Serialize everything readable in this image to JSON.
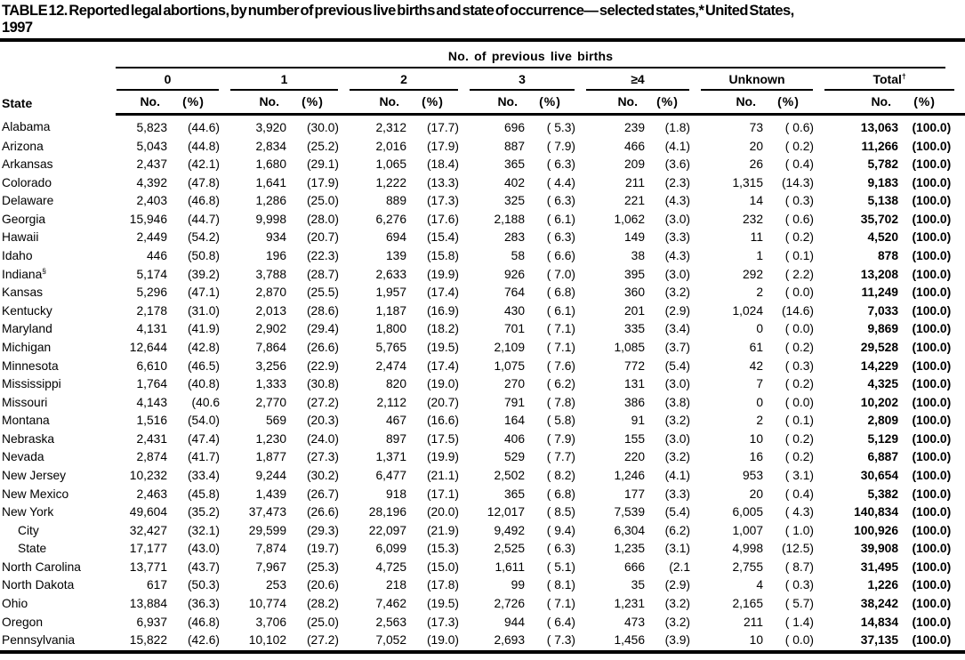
{
  "title": {
    "line1": "TABLE 12. Reported legal abortions, by number of previous live births and state of occurrence— selected states,* United States,",
    "line2": "1997"
  },
  "header": {
    "state_label": "State",
    "spanner": "No. of previous live births",
    "groups": [
      {
        "label": "0",
        "sup": ""
      },
      {
        "label": "1",
        "sup": ""
      },
      {
        "label": "2",
        "sup": ""
      },
      {
        "label": "3",
        "sup": ""
      },
      {
        "label": "≥4",
        "sup": ""
      },
      {
        "label": "Unknown",
        "sup": ""
      },
      {
        "label": "Total",
        "sup": "†"
      }
    ],
    "no_label": "No.",
    "pct_label": "(%)"
  },
  "rows": [
    {
      "state": "Alabama",
      "sup": "",
      "indent": false,
      "cells": [
        [
          "5,823",
          "(44.6)"
        ],
        [
          "3,920",
          "(30.0)"
        ],
        [
          "2,312",
          "(17.7)"
        ],
        [
          "696",
          "( 5.3)"
        ],
        [
          "239",
          "(1.8)"
        ],
        [
          "73",
          "( 0.6)"
        ],
        [
          "13,063",
          "(100.0)"
        ]
      ]
    },
    {
      "state": "Arizona",
      "sup": "",
      "indent": false,
      "cells": [
        [
          "5,043",
          "(44.8)"
        ],
        [
          "2,834",
          "(25.2)"
        ],
        [
          "2,016",
          "(17.9)"
        ],
        [
          "887",
          "( 7.9)"
        ],
        [
          "466",
          "(4.1)"
        ],
        [
          "20",
          "( 0.2)"
        ],
        [
          "11,266",
          "(100.0)"
        ]
      ]
    },
    {
      "state": "Arkansas",
      "sup": "",
      "indent": false,
      "cells": [
        [
          "2,437",
          "(42.1)"
        ],
        [
          "1,680",
          "(29.1)"
        ],
        [
          "1,065",
          "(18.4)"
        ],
        [
          "365",
          "( 6.3)"
        ],
        [
          "209",
          "(3.6)"
        ],
        [
          "26",
          "( 0.4)"
        ],
        [
          "5,782",
          "(100.0)"
        ]
      ]
    },
    {
      "state": "Colorado",
      "sup": "",
      "indent": false,
      "cells": [
        [
          "4,392",
          "(47.8)"
        ],
        [
          "1,641",
          "(17.9)"
        ],
        [
          "1,222",
          "(13.3)"
        ],
        [
          "402",
          "( 4.4)"
        ],
        [
          "211",
          "(2.3)"
        ],
        [
          "1,315",
          "(14.3)"
        ],
        [
          "9,183",
          "(100.0)"
        ]
      ]
    },
    {
      "state": "Delaware",
      "sup": "",
      "indent": false,
      "cells": [
        [
          "2,403",
          "(46.8)"
        ],
        [
          "1,286",
          "(25.0)"
        ],
        [
          "889",
          "(17.3)"
        ],
        [
          "325",
          "( 6.3)"
        ],
        [
          "221",
          "(4.3)"
        ],
        [
          "14",
          "( 0.3)"
        ],
        [
          "5,138",
          "(100.0)"
        ]
      ]
    },
    {
      "state": "Georgia",
      "sup": "",
      "indent": false,
      "cells": [
        [
          "15,946",
          "(44.7)"
        ],
        [
          "9,998",
          "(28.0)"
        ],
        [
          "6,276",
          "(17.6)"
        ],
        [
          "2,188",
          "( 6.1)"
        ],
        [
          "1,062",
          "(3.0)"
        ],
        [
          "232",
          "( 0.6)"
        ],
        [
          "35,702",
          "(100.0)"
        ]
      ]
    },
    {
      "state": "Hawaii",
      "sup": "",
      "indent": false,
      "cells": [
        [
          "2,449",
          "(54.2)"
        ],
        [
          "934",
          "(20.7)"
        ],
        [
          "694",
          "(15.4)"
        ],
        [
          "283",
          "( 6.3)"
        ],
        [
          "149",
          "(3.3)"
        ],
        [
          "11",
          "( 0.2)"
        ],
        [
          "4,520",
          "(100.0)"
        ]
      ]
    },
    {
      "state": "Idaho",
      "sup": "",
      "indent": false,
      "cells": [
        [
          "446",
          "(50.8)"
        ],
        [
          "196",
          "(22.3)"
        ],
        [
          "139",
          "(15.8)"
        ],
        [
          "58",
          "( 6.6)"
        ],
        [
          "38",
          "(4.3)"
        ],
        [
          "1",
          "( 0.1)"
        ],
        [
          "878",
          "(100.0)"
        ]
      ]
    },
    {
      "state": "Indiana",
      "sup": "§",
      "indent": false,
      "cells": [
        [
          "5,174",
          "(39.2)"
        ],
        [
          "3,788",
          "(28.7)"
        ],
        [
          "2,633",
          "(19.9)"
        ],
        [
          "926",
          "( 7.0)"
        ],
        [
          "395",
          "(3.0)"
        ],
        [
          "292",
          "( 2.2)"
        ],
        [
          "13,208",
          "(100.0)"
        ]
      ]
    },
    {
      "state": "Kansas",
      "sup": "",
      "indent": false,
      "cells": [
        [
          "5,296",
          "(47.1)"
        ],
        [
          "2,870",
          "(25.5)"
        ],
        [
          "1,957",
          "(17.4)"
        ],
        [
          "764",
          "( 6.8)"
        ],
        [
          "360",
          "(3.2)"
        ],
        [
          "2",
          "( 0.0)"
        ],
        [
          "11,249",
          "(100.0)"
        ]
      ]
    },
    {
      "state": "Kentucky",
      "sup": "",
      "indent": false,
      "cells": [
        [
          "2,178",
          "(31.0)"
        ],
        [
          "2,013",
          "(28.6)"
        ],
        [
          "1,187",
          "(16.9)"
        ],
        [
          "430",
          "( 6.1)"
        ],
        [
          "201",
          "(2.9)"
        ],
        [
          "1,024",
          "(14.6)"
        ],
        [
          "7,033",
          "(100.0)"
        ]
      ]
    },
    {
      "state": "Maryland",
      "sup": "",
      "indent": false,
      "cells": [
        [
          "4,131",
          "(41.9)"
        ],
        [
          "2,902",
          "(29.4)"
        ],
        [
          "1,800",
          "(18.2)"
        ],
        [
          "701",
          "( 7.1)"
        ],
        [
          "335",
          "(3.4)"
        ],
        [
          "0",
          "( 0.0)"
        ],
        [
          "9,869",
          "(100.0)"
        ]
      ]
    },
    {
      "state": "Michigan",
      "sup": "",
      "indent": false,
      "cells": [
        [
          "12,644",
          "(42.8)"
        ],
        [
          "7,864",
          "(26.6)"
        ],
        [
          "5,765",
          "(19.5)"
        ],
        [
          "2,109",
          "( 7.1)"
        ],
        [
          "1,085",
          "(3.7)"
        ],
        [
          "61",
          "( 0.2)"
        ],
        [
          "29,528",
          "(100.0)"
        ]
      ]
    },
    {
      "state": "Minnesota",
      "sup": "",
      "indent": false,
      "cells": [
        [
          "6,610",
          "(46.5)"
        ],
        [
          "3,256",
          "(22.9)"
        ],
        [
          "2,474",
          "(17.4)"
        ],
        [
          "1,075",
          "( 7.6)"
        ],
        [
          "772",
          "(5.4)"
        ],
        [
          "42",
          "( 0.3)"
        ],
        [
          "14,229",
          "(100.0)"
        ]
      ]
    },
    {
      "state": "Mississippi",
      "sup": "",
      "indent": false,
      "cells": [
        [
          "1,764",
          "(40.8)"
        ],
        [
          "1,333",
          "(30.8)"
        ],
        [
          "820",
          "(19.0)"
        ],
        [
          "270",
          "( 6.2)"
        ],
        [
          "131",
          "(3.0)"
        ],
        [
          "7",
          "( 0.2)"
        ],
        [
          "4,325",
          "(100.0)"
        ]
      ]
    },
    {
      "state": "Missouri",
      "sup": "",
      "indent": false,
      "cells": [
        [
          "4,143",
          "(40.6"
        ],
        [
          "2,770",
          "(27.2)"
        ],
        [
          "2,112",
          "(20.7)"
        ],
        [
          "791",
          "( 7.8)"
        ],
        [
          "386",
          "(3.8)"
        ],
        [
          "0",
          "( 0.0)"
        ],
        [
          "10,202",
          "(100.0)"
        ]
      ]
    },
    {
      "state": "Montana",
      "sup": "",
      "indent": false,
      "cells": [
        [
          "1,516",
          "(54.0)"
        ],
        [
          "569",
          "(20.3)"
        ],
        [
          "467",
          "(16.6)"
        ],
        [
          "164",
          "( 5.8)"
        ],
        [
          "91",
          "(3.2)"
        ],
        [
          "2",
          "( 0.1)"
        ],
        [
          "2,809",
          "(100.0)"
        ]
      ]
    },
    {
      "state": "Nebraska",
      "sup": "",
      "indent": false,
      "cells": [
        [
          "2,431",
          "(47.4)"
        ],
        [
          "1,230",
          "(24.0)"
        ],
        [
          "897",
          "(17.5)"
        ],
        [
          "406",
          "( 7.9)"
        ],
        [
          "155",
          "(3.0)"
        ],
        [
          "10",
          "( 0.2)"
        ],
        [
          "5,129",
          "(100.0)"
        ]
      ]
    },
    {
      "state": "Nevada",
      "sup": "",
      "indent": false,
      "cells": [
        [
          "2,874",
          "(41.7)"
        ],
        [
          "1,877",
          "(27.3)"
        ],
        [
          "1,371",
          "(19.9)"
        ],
        [
          "529",
          "( 7.7)"
        ],
        [
          "220",
          "(3.2)"
        ],
        [
          "16",
          "( 0.2)"
        ],
        [
          "6,887",
          "(100.0)"
        ]
      ]
    },
    {
      "state": "New Jersey",
      "sup": "",
      "indent": false,
      "cells": [
        [
          "10,232",
          "(33.4)"
        ],
        [
          "9,244",
          "(30.2)"
        ],
        [
          "6,477",
          "(21.1)"
        ],
        [
          "2,502",
          "( 8.2)"
        ],
        [
          "1,246",
          "(4.1)"
        ],
        [
          "953",
          "( 3.1)"
        ],
        [
          "30,654",
          "(100.0)"
        ]
      ]
    },
    {
      "state": "New Mexico",
      "sup": "",
      "indent": false,
      "cells": [
        [
          "2,463",
          "(45.8)"
        ],
        [
          "1,439",
          "(26.7)"
        ],
        [
          "918",
          "(17.1)"
        ],
        [
          "365",
          "( 6.8)"
        ],
        [
          "177",
          "(3.3)"
        ],
        [
          "20",
          "( 0.4)"
        ],
        [
          "5,382",
          "(100.0)"
        ]
      ]
    },
    {
      "state": "New York",
      "sup": "",
      "indent": false,
      "cells": [
        [
          "49,604",
          "(35.2)"
        ],
        [
          "37,473",
          "(26.6)"
        ],
        [
          "28,196",
          "(20.0)"
        ],
        [
          "12,017",
          "( 8.5)"
        ],
        [
          "7,539",
          "(5.4)"
        ],
        [
          "6,005",
          "( 4.3)"
        ],
        [
          "140,834",
          "(100.0)"
        ]
      ]
    },
    {
      "state": "City",
      "sup": "",
      "indent": true,
      "cells": [
        [
          "32,427",
          "(32.1)"
        ],
        [
          "29,599",
          "(29.3)"
        ],
        [
          "22,097",
          "(21.9)"
        ],
        [
          "9,492",
          "( 9.4)"
        ],
        [
          "6,304",
          "(6.2)"
        ],
        [
          "1,007",
          "( 1.0)"
        ],
        [
          "100,926",
          "(100.0)"
        ]
      ]
    },
    {
      "state": "State",
      "sup": "",
      "indent": true,
      "cells": [
        [
          "17,177",
          "(43.0)"
        ],
        [
          "7,874",
          "(19.7)"
        ],
        [
          "6,099",
          "(15.3)"
        ],
        [
          "2,525",
          "( 6.3)"
        ],
        [
          "1,235",
          "(3.1)"
        ],
        [
          "4,998",
          "(12.5)"
        ],
        [
          "39,908",
          "(100.0)"
        ]
      ]
    },
    {
      "state": "North Carolina",
      "sup": "",
      "indent": false,
      "cells": [
        [
          "13,771",
          "(43.7)"
        ],
        [
          "7,967",
          "(25.3)"
        ],
        [
          "4,725",
          "(15.0)"
        ],
        [
          "1,611",
          "( 5.1)"
        ],
        [
          "666",
          "(2.1"
        ],
        [
          "2,755",
          "( 8.7)"
        ],
        [
          "31,495",
          "(100.0)"
        ]
      ]
    },
    {
      "state": "North Dakota",
      "sup": "",
      "indent": false,
      "cells": [
        [
          "617",
          "(50.3)"
        ],
        [
          "253",
          "(20.6)"
        ],
        [
          "218",
          "(17.8)"
        ],
        [
          "99",
          "( 8.1)"
        ],
        [
          "35",
          "(2.9)"
        ],
        [
          "4",
          "( 0.3)"
        ],
        [
          "1,226",
          "(100.0)"
        ]
      ]
    },
    {
      "state": "Ohio",
      "sup": "",
      "indent": false,
      "cells": [
        [
          "13,884",
          "(36.3)"
        ],
        [
          "10,774",
          "(28.2)"
        ],
        [
          "7,462",
          "(19.5)"
        ],
        [
          "2,726",
          "( 7.1)"
        ],
        [
          "1,231",
          "(3.2)"
        ],
        [
          "2,165",
          "( 5.7)"
        ],
        [
          "38,242",
          "(100.0)"
        ]
      ]
    },
    {
      "state": "Oregon",
      "sup": "",
      "indent": false,
      "cells": [
        [
          "6,937",
          "(46.8)"
        ],
        [
          "3,706",
          "(25.0)"
        ],
        [
          "2,563",
          "(17.3)"
        ],
        [
          "944",
          "( 6.4)"
        ],
        [
          "473",
          "(3.2)"
        ],
        [
          "211",
          "( 1.4)"
        ],
        [
          "14,834",
          "(100.0)"
        ]
      ]
    },
    {
      "state": "Pennsylvania",
      "sup": "",
      "indent": false,
      "cells": [
        [
          "15,822",
          "(42.6)"
        ],
        [
          "10,102",
          "(27.2)"
        ],
        [
          "7,052",
          "(19.0)"
        ],
        [
          "2,693",
          "( 7.3)"
        ],
        [
          "1,456",
          "(3.9)"
        ],
        [
          "10",
          "( 0.0)"
        ],
        [
          "37,135",
          "(100.0)"
        ]
      ]
    }
  ]
}
